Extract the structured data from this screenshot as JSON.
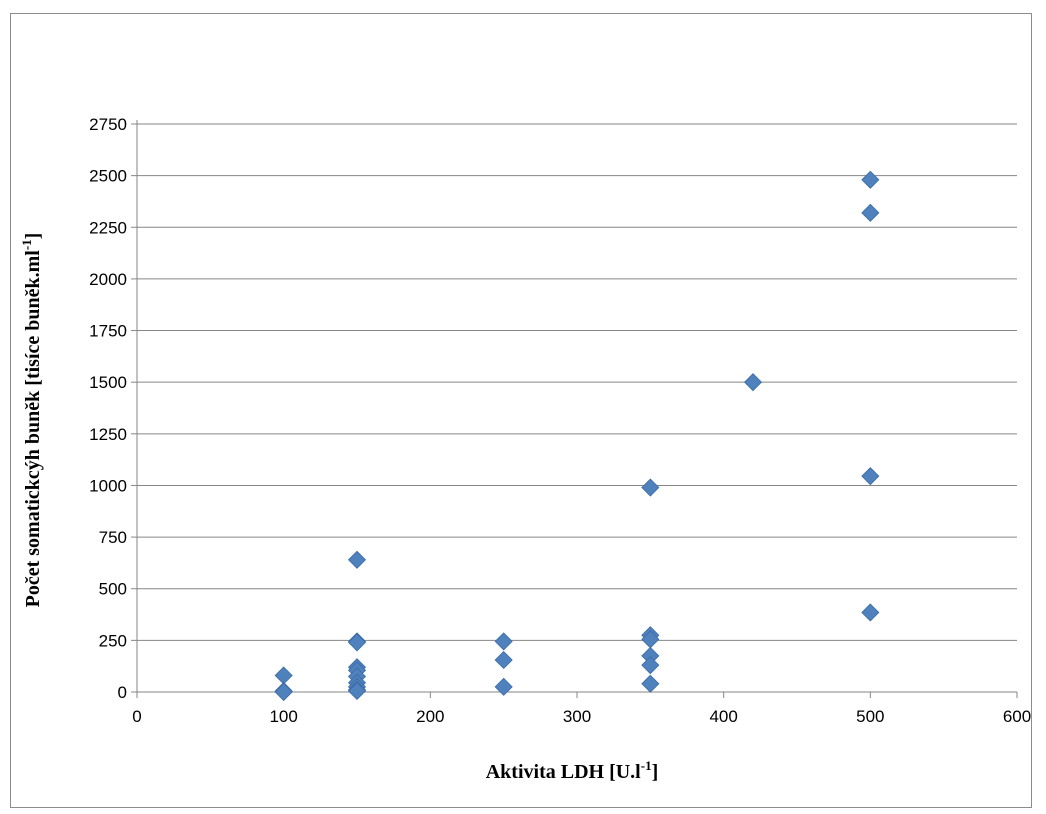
{
  "chart_data": {
    "type": "scatter",
    "xlabel": {
      "text": "Aktivita LDH [U.l",
      "sup": "-1",
      "suffix": "]"
    },
    "ylabel": {
      "text": "Počet somatickcýh buněk [tisíce buněk.ml",
      "sup": "-1",
      "suffix": "]"
    },
    "xlim": [
      0,
      600
    ],
    "ylim": [
      0,
      2750
    ],
    "x_ticks": [
      0,
      100,
      200,
      300,
      400,
      500,
      600
    ],
    "y_ticks": [
      0,
      250,
      500,
      750,
      1000,
      1250,
      1500,
      1750,
      2000,
      2250,
      2500,
      2750
    ],
    "grid": "horizontal",
    "marker": "diamond",
    "marker_color": "#4F81BD",
    "gridline_color": "#868686",
    "series": [
      {
        "points": [
          [
            100,
            80
          ],
          [
            100,
            5
          ],
          [
            100,
            0
          ],
          [
            150,
            640
          ],
          [
            150,
            245
          ],
          [
            150,
            240
          ],
          [
            150,
            120
          ],
          [
            150,
            105
          ],
          [
            150,
            75
          ],
          [
            150,
            45
          ],
          [
            150,
            25
          ],
          [
            150,
            10
          ],
          [
            150,
            5
          ],
          [
            250,
            245
          ],
          [
            250,
            155
          ],
          [
            250,
            25
          ],
          [
            350,
            990
          ],
          [
            350,
            275
          ],
          [
            350,
            255
          ],
          [
            350,
            175
          ],
          [
            350,
            130
          ],
          [
            350,
            40
          ],
          [
            420,
            1500
          ],
          [
            500,
            2480
          ],
          [
            500,
            2320
          ],
          [
            500,
            1045
          ],
          [
            500,
            385
          ]
        ]
      }
    ]
  }
}
